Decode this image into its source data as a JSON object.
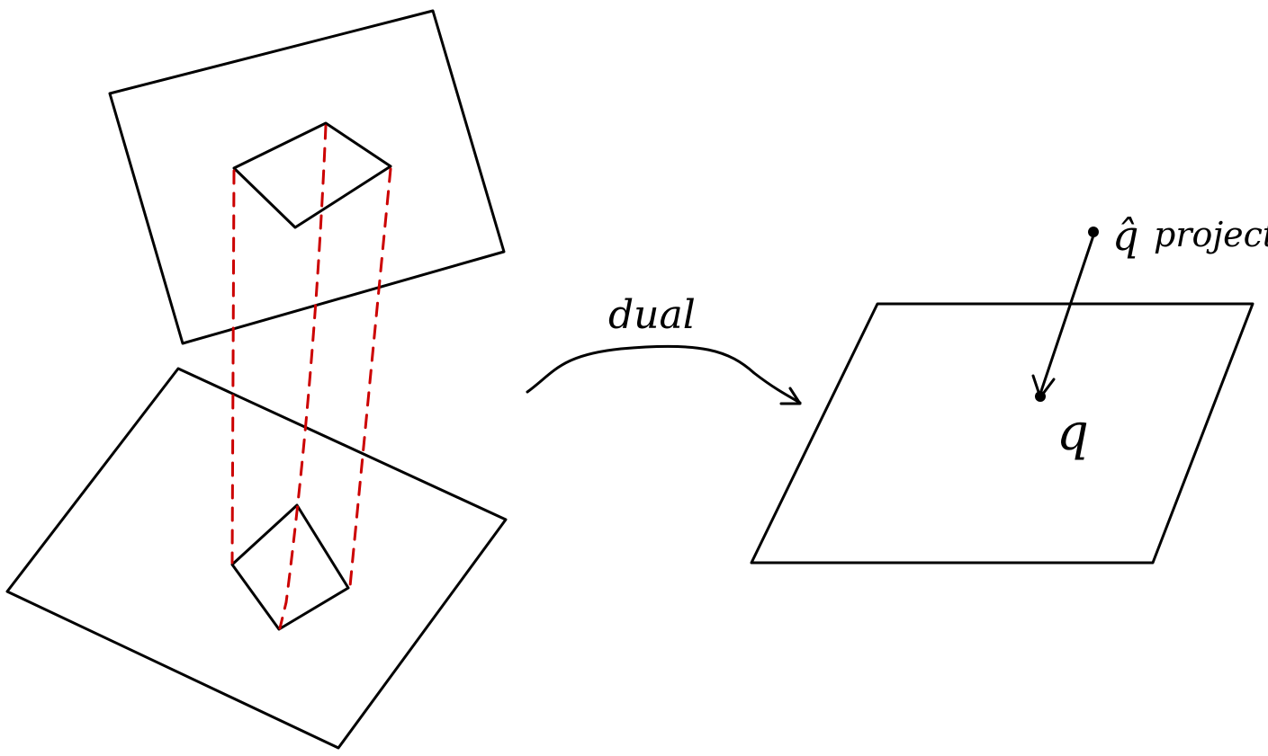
{
  "colors": {
    "ink": "#000000",
    "projection": "#cc0000",
    "background": "#ffffff"
  },
  "labels": {
    "arrow": "dual",
    "point_hat": "q̂",
    "point_hat_note": "project",
    "point": "q"
  }
}
